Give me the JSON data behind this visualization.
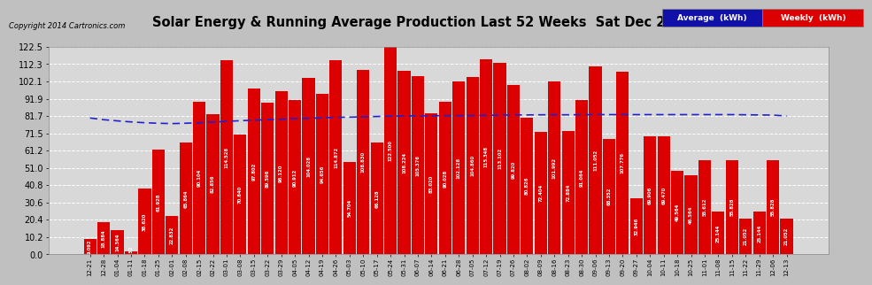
{
  "title": "Solar Energy & Running Average Production Last 52 Weeks  Sat Dec 20  07:42",
  "copyright": "Copyright 2014 Cartronics.com",
  "bar_color": "#dd0000",
  "avg_line_color": "#2222cc",
  "background_color": "#c0c0c0",
  "plot_bg_color": "#d8d8d8",
  "ylim": [
    0.0,
    122.5
  ],
  "yticks": [
    0.0,
    10.2,
    20.4,
    30.6,
    40.8,
    51.0,
    61.2,
    71.5,
    81.7,
    91.9,
    102.1,
    112.3,
    122.5
  ],
  "legend_avg_color": "#1111aa",
  "legend_weekly_color": "#dd0000",
  "categories": [
    "12-21",
    "12-28",
    "01-04",
    "01-11",
    "01-18",
    "01-25",
    "02-01",
    "02-08",
    "02-15",
    "02-22",
    "03-01",
    "03-08",
    "03-15",
    "03-22",
    "03-29",
    "04-05",
    "04-12",
    "04-19",
    "04-26",
    "05-03",
    "05-10",
    "05-17",
    "05-24",
    "05-31",
    "06-07",
    "06-14",
    "06-21",
    "06-28",
    "07-05",
    "07-12",
    "07-19",
    "07-26",
    "08-02",
    "08-09",
    "08-16",
    "08-23",
    "08-30",
    "09-06",
    "09-13",
    "09-20",
    "09-27",
    "10-04",
    "10-11",
    "10-18",
    "10-25",
    "11-01",
    "11-08",
    "11-15",
    "11-22",
    "11-29",
    "12-06",
    "12-13"
  ],
  "values": [
    9.092,
    18.884,
    14.364,
    1.752,
    38.62,
    61.928,
    22.832,
    65.864,
    90.104,
    82.856,
    114.528,
    70.84,
    97.802,
    89.596,
    96.12,
    90.912,
    104.028,
    94.656,
    114.872,
    54.704,
    108.83,
    66.128,
    122.5,
    108.224,
    105.376,
    83.02,
    90.028,
    102.128,
    104.86,
    115.348,
    113.102,
    99.82,
    80.826,
    72.404,
    101.992,
    72.884,
    91.064,
    111.052,
    68.352,
    107.776,
    32.946,
    69.906,
    69.47,
    49.564,
    46.564,
    55.612,
    25.144,
    55.828,
    21.052,
    25.144,
    55.828,
    21.052
  ],
  "avg_values": [
    80.5,
    79.5,
    78.8,
    78.2,
    77.7,
    77.4,
    77.2,
    77.4,
    77.7,
    78.1,
    78.5,
    78.9,
    79.2,
    79.5,
    79.8,
    80.1,
    80.3,
    80.6,
    80.9,
    81.0,
    81.2,
    81.4,
    81.6,
    81.7,
    81.8,
    81.8,
    81.9,
    81.9,
    82.0,
    82.1,
    82.2,
    82.3,
    82.3,
    82.4,
    82.4,
    82.4,
    82.4,
    82.5,
    82.5,
    82.5,
    82.5,
    82.5,
    82.5,
    82.5,
    82.5,
    82.5,
    82.5,
    82.5,
    82.4,
    82.3,
    82.2,
    81.7
  ]
}
